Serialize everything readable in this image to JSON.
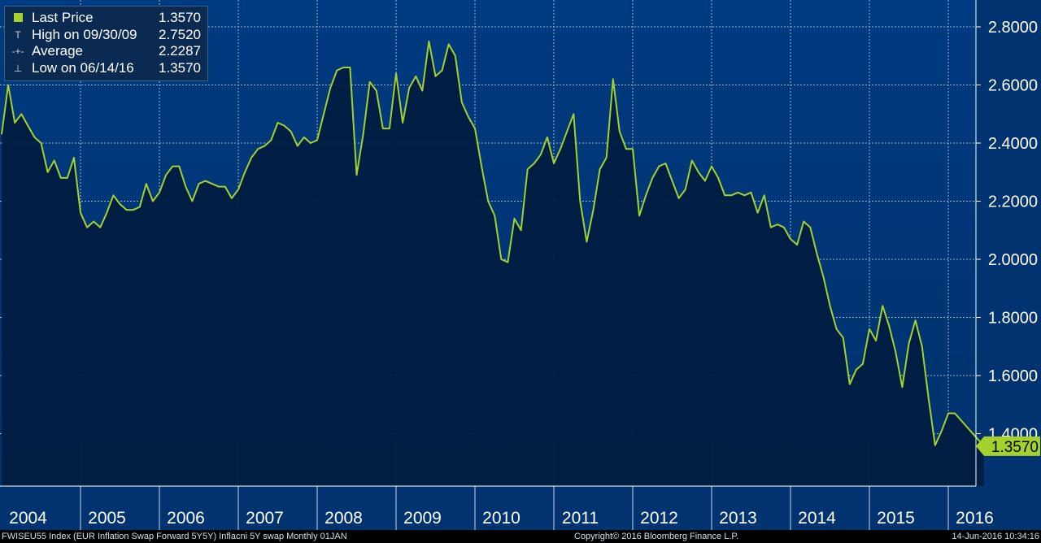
{
  "chart_data": {
    "type": "area",
    "title": "",
    "xlabel": "",
    "ylabel": "",
    "x_range": [
      "2004-01-01",
      "2016-06-14"
    ],
    "ylim": [
      1.25,
      2.85
    ],
    "y_ticks": [
      "1.4000",
      "1.6000",
      "1.8000",
      "2.0000",
      "2.2000",
      "2.4000",
      "2.6000",
      "2.8000"
    ],
    "x_tick_labels": [
      "2004",
      "2005",
      "2006",
      "2007",
      "2008",
      "2009",
      "2010",
      "2011",
      "2012",
      "2013",
      "2014",
      "2015",
      "2016"
    ],
    "grid": true,
    "legend_position": "top-left",
    "colors": {
      "line": "#a4d12e",
      "area": "#001b3f",
      "background_top": "#003a80",
      "background_bottom": "#00336f",
      "grid": "#9fb3cc"
    },
    "series": [
      {
        "name": "Last Price",
        "points": [
          [
            "2004-01",
            2.43
          ],
          [
            "2004-02",
            2.6
          ],
          [
            "2004-03",
            2.47
          ],
          [
            "2004-04",
            2.5
          ],
          [
            "2004-05",
            2.46
          ],
          [
            "2004-06",
            2.42
          ],
          [
            "2004-07",
            2.4
          ],
          [
            "2004-08",
            2.3
          ],
          [
            "2004-09",
            2.34
          ],
          [
            "2004-10",
            2.28
          ],
          [
            "2004-11",
            2.28
          ],
          [
            "2004-12",
            2.35
          ],
          [
            "2005-01",
            2.16
          ],
          [
            "2005-02",
            2.11
          ],
          [
            "2005-03",
            2.13
          ],
          [
            "2005-04",
            2.11
          ],
          [
            "2005-05",
            2.16
          ],
          [
            "2005-06",
            2.22
          ],
          [
            "2005-07",
            2.19
          ],
          [
            "2005-08",
            2.17
          ],
          [
            "2005-09",
            2.17
          ],
          [
            "2005-10",
            2.18
          ],
          [
            "2005-11",
            2.26
          ],
          [
            "2005-12",
            2.2
          ],
          [
            "2006-01",
            2.23
          ],
          [
            "2006-02",
            2.29
          ],
          [
            "2006-03",
            2.32
          ],
          [
            "2006-04",
            2.32
          ],
          [
            "2006-05",
            2.25
          ],
          [
            "2006-06",
            2.2
          ],
          [
            "2006-07",
            2.26
          ],
          [
            "2006-08",
            2.27
          ],
          [
            "2006-09",
            2.26
          ],
          [
            "2006-10",
            2.25
          ],
          [
            "2006-11",
            2.25
          ],
          [
            "2006-12",
            2.21
          ],
          [
            "2007-01",
            2.24
          ],
          [
            "2007-02",
            2.3
          ],
          [
            "2007-03",
            2.35
          ],
          [
            "2007-04",
            2.38
          ],
          [
            "2007-05",
            2.39
          ],
          [
            "2007-06",
            2.41
          ],
          [
            "2007-07",
            2.47
          ],
          [
            "2007-08",
            2.46
          ],
          [
            "2007-09",
            2.44
          ],
          [
            "2007-10",
            2.39
          ],
          [
            "2007-11",
            2.42
          ],
          [
            "2007-12",
            2.4
          ],
          [
            "2008-01",
            2.41
          ],
          [
            "2008-02",
            2.5
          ],
          [
            "2008-03",
            2.59
          ],
          [
            "2008-04",
            2.65
          ],
          [
            "2008-05",
            2.66
          ],
          [
            "2008-06",
            2.66
          ],
          [
            "2008-07",
            2.29
          ],
          [
            "2008-08",
            2.43
          ],
          [
            "2008-09",
            2.61
          ],
          [
            "2008-10",
            2.58
          ],
          [
            "2008-11",
            2.45
          ],
          [
            "2008-12",
            2.45
          ],
          [
            "2009-01",
            2.64
          ],
          [
            "2009-02",
            2.47
          ],
          [
            "2009-03",
            2.59
          ],
          [
            "2009-04",
            2.63
          ],
          [
            "2009-05",
            2.58
          ],
          [
            "2009-06",
            2.75
          ],
          [
            "2009-07",
            2.63
          ],
          [
            "2009-08",
            2.65
          ],
          [
            "2009-09",
            2.74
          ],
          [
            "2009-10",
            2.7
          ],
          [
            "2009-11",
            2.54
          ],
          [
            "2009-12",
            2.49
          ],
          [
            "2010-01",
            2.45
          ],
          [
            "2010-02",
            2.32
          ],
          [
            "2010-03",
            2.2
          ],
          [
            "2010-04",
            2.15
          ],
          [
            "2010-05",
            2.0
          ],
          [
            "2010-06",
            1.99
          ],
          [
            "2010-07",
            2.14
          ],
          [
            "2010-08",
            2.1
          ],
          [
            "2010-09",
            2.31
          ],
          [
            "2010-10",
            2.33
          ],
          [
            "2010-11",
            2.36
          ],
          [
            "2010-12",
            2.42
          ],
          [
            "2011-01",
            2.33
          ],
          [
            "2011-02",
            2.38
          ],
          [
            "2011-03",
            2.44
          ],
          [
            "2011-04",
            2.5
          ],
          [
            "2011-05",
            2.2
          ],
          [
            "2011-06",
            2.06
          ],
          [
            "2011-07",
            2.17
          ],
          [
            "2011-08",
            2.31
          ],
          [
            "2011-09",
            2.35
          ],
          [
            "2011-10",
            2.62
          ],
          [
            "2011-11",
            2.44
          ],
          [
            "2011-12",
            2.38
          ],
          [
            "2012-01",
            2.38
          ],
          [
            "2012-02",
            2.15
          ],
          [
            "2012-03",
            2.22
          ],
          [
            "2012-04",
            2.28
          ],
          [
            "2012-05",
            2.32
          ],
          [
            "2012-06",
            2.33
          ],
          [
            "2012-07",
            2.27
          ],
          [
            "2012-08",
            2.21
          ],
          [
            "2012-09",
            2.24
          ],
          [
            "2012-10",
            2.34
          ],
          [
            "2012-11",
            2.3
          ],
          [
            "2012-12",
            2.27
          ],
          [
            "2013-01",
            2.32
          ],
          [
            "2013-02",
            2.28
          ],
          [
            "2013-03",
            2.22
          ],
          [
            "2013-04",
            2.22
          ],
          [
            "2013-05",
            2.23
          ],
          [
            "2013-06",
            2.22
          ],
          [
            "2013-07",
            2.23
          ],
          [
            "2013-08",
            2.16
          ],
          [
            "2013-09",
            2.22
          ],
          [
            "2013-10",
            2.11
          ],
          [
            "2013-11",
            2.12
          ],
          [
            "2013-12",
            2.11
          ],
          [
            "2014-01",
            2.07
          ],
          [
            "2014-02",
            2.05
          ],
          [
            "2014-03",
            2.13
          ],
          [
            "2014-04",
            2.11
          ],
          [
            "2014-05",
            2.02
          ],
          [
            "2014-06",
            1.94
          ],
          [
            "2014-07",
            1.84
          ],
          [
            "2014-08",
            1.76
          ],
          [
            "2014-09",
            1.73
          ],
          [
            "2014-10",
            1.57
          ],
          [
            "2014-11",
            1.62
          ],
          [
            "2014-12",
            1.64
          ],
          [
            "2015-01",
            1.76
          ],
          [
            "2015-02",
            1.72
          ],
          [
            "2015-03",
            1.84
          ],
          [
            "2015-04",
            1.77
          ],
          [
            "2015-05",
            1.68
          ],
          [
            "2015-06",
            1.56
          ],
          [
            "2015-07",
            1.71
          ],
          [
            "2015-08",
            1.79
          ],
          [
            "2015-09",
            1.7
          ],
          [
            "2015-10",
            1.52
          ],
          [
            "2015-11",
            1.36
          ],
          [
            "2015-12",
            1.41
          ],
          [
            "2016-01",
            1.47
          ],
          [
            "2016-02",
            1.47
          ],
          [
            "2016-06-14",
            1.357
          ]
        ]
      }
    ],
    "last_value_label": "1.3570"
  },
  "legend": {
    "rows": [
      {
        "marker": "swatch",
        "label": "Last Price",
        "value": "1.3570"
      },
      {
        "marker": "T",
        "label": "High on 09/30/09",
        "value": "2.7520"
      },
      {
        "marker": "-+-",
        "label": "Average",
        "value": "2.2287"
      },
      {
        "marker": "⊥",
        "label": "Low on 06/14/16",
        "value": "1.3570"
      }
    ]
  },
  "footer": {
    "description": "FWISEU55 Index (EUR Inflation Swap Forward 5Y5Y) Inflacni 5Y swap  Monthly 01JAN",
    "copyright": "Copyright© 2016 Bloomberg Finance L.P.",
    "timestamp": "14-Jun-2016 10:34:16"
  }
}
